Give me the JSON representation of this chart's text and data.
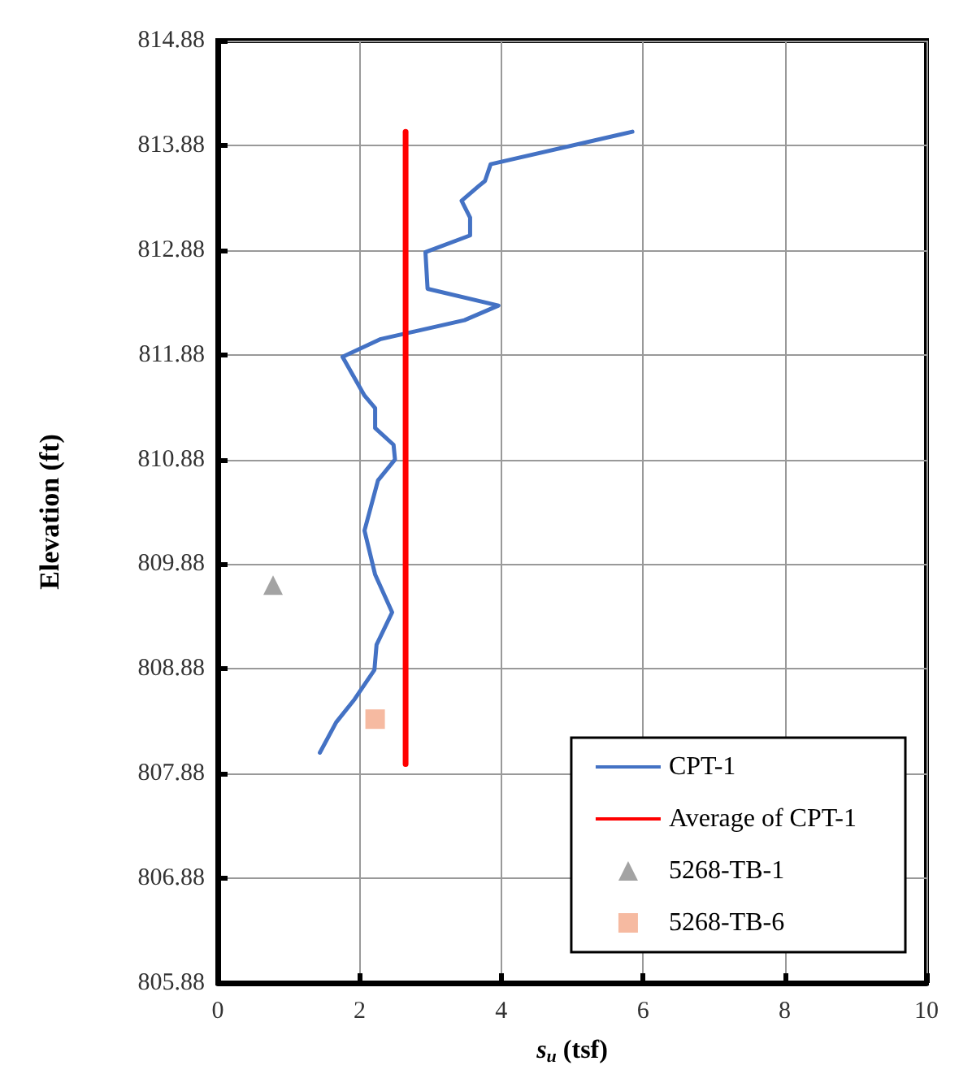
{
  "chart_data": {
    "type": "line",
    "xlabel": "s$_{u}$ (tsf)",
    "ylabel": "Elevation (ft)",
    "xlim": [
      0,
      10
    ],
    "xticks": [
      0,
      2,
      4,
      6,
      8,
      10
    ],
    "ylim": [
      805.88,
      814.88
    ],
    "yticks": [
      805.88,
      806.88,
      807.88,
      808.88,
      809.88,
      810.88,
      811.88,
      812.88,
      813.88,
      814.88
    ],
    "grid": true,
    "legend": "bottom right",
    "marker": "none",
    "line_style": "solid",
    "series": [
      {
        "name": "CPT-1",
        "color": "#4472c4",
        "x": [
          5.85,
          3.85,
          3.77,
          3.68,
          3.44,
          3.56,
          3.56,
          2.93,
          2.96,
          3.96,
          3.48,
          2.3,
          1.76,
          2.07,
          2.22,
          2.22,
          2.48,
          2.5,
          2.26,
          2.07,
          2.22,
          2.46,
          2.24,
          2.21,
          1.93,
          1.67,
          1.44
        ],
        "values": [
          814.01,
          813.7,
          813.54,
          813.49,
          813.35,
          813.19,
          813.02,
          812.86,
          812.51,
          812.35,
          812.21,
          812.03,
          811.86,
          811.49,
          811.37,
          811.18,
          811.02,
          810.88,
          810.68,
          810.2,
          809.78,
          809.42,
          809.11,
          808.87,
          808.59,
          808.37,
          808.08
        ]
      },
      {
        "name": "Average of CPT-1",
        "color": "#ff0000",
        "x": [
          2.65,
          2.65
        ],
        "values": [
          814.01,
          807.97
        ]
      },
      {
        "name": "5268-TB-1",
        "type": "scatter",
        "marker": "triangle",
        "color": "#8c8c8c",
        "x": [
          0.78
        ],
        "values": [
          809.68
        ]
      },
      {
        "name": "5268-TB-6",
        "type": "scatter",
        "marker": "square",
        "color": "#f4a98a",
        "x": [
          2.22
        ],
        "values": [
          808.4
        ]
      }
    ]
  }
}
